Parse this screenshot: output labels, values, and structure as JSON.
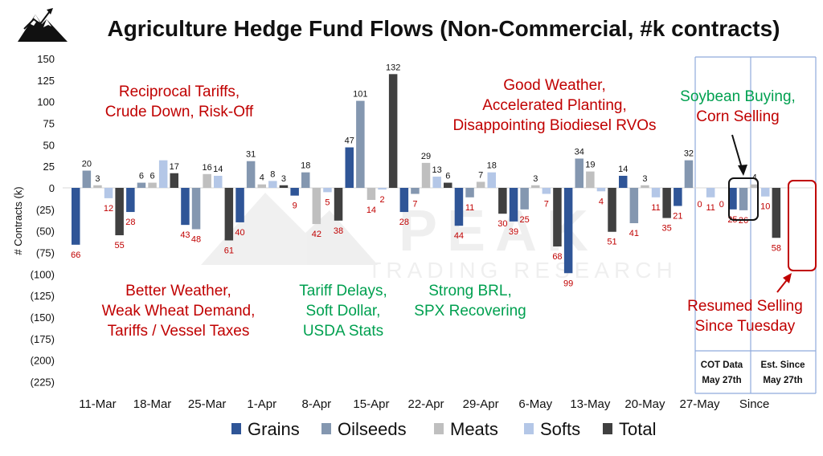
{
  "chart_data": {
    "type": "bar",
    "title": "Agriculture Hedge Fund Flows (Non-Commercial, #k contracts)",
    "ylabel": "# Contracts (k)",
    "ylim": [
      -225,
      150
    ],
    "ytick_labels": [
      "150",
      "125",
      "100",
      "75",
      "50",
      "25",
      "0",
      "(25)",
      "(50)",
      "(75)",
      "(100)",
      "(125)",
      "(150)",
      "(175)",
      "(200)",
      "(225)"
    ],
    "ytick_values": [
      150,
      125,
      100,
      75,
      50,
      25,
      0,
      -25,
      -50,
      -75,
      -100,
      -125,
      -150,
      -175,
      -200,
      -225
    ],
    "categories": [
      "11-Mar",
      "18-Mar",
      "25-Mar",
      "1-Apr",
      "8-Apr",
      "15-Apr",
      "22-Apr",
      "29-Apr",
      "6-May",
      "13-May",
      "20-May",
      "27-May",
      "Since"
    ],
    "grid": false,
    "legend_position": "bottom",
    "series": [
      {
        "name": "Grains",
        "color": "#2f5597",
        "values": [
          -66,
          -28,
          -43,
          -40,
          -9,
          47,
          -28,
          -44,
          -39,
          -99,
          14,
          -21,
          -25
        ]
      },
      {
        "name": "Oilseeds",
        "color": "#8497b0",
        "values": [
          20,
          6,
          -48,
          31,
          18,
          101,
          -7,
          -11,
          -25,
          34,
          -41,
          32,
          -26
        ]
      },
      {
        "name": "Meats",
        "color": "#bfbfbf",
        "values": [
          3,
          6,
          16,
          4,
          -42,
          -14,
          29,
          7,
          3,
          19,
          3,
          0,
          4
        ]
      },
      {
        "name": "Softs",
        "color": "#b4c7e7",
        "values": [
          -12,
          32,
          14,
          8,
          -5,
          -2,
          13,
          18,
          -7,
          -4,
          -11,
          -11,
          -10
        ]
      },
      {
        "name": "Total",
        "color": "#404040",
        "values": [
          -55,
          17,
          -61,
          3,
          -38,
          132,
          6,
          -30,
          -68,
          -51,
          -35,
          0,
          -58
        ]
      }
    ],
    "data_labels": [
      [
        "66",
        "20",
        "3",
        "12",
        "55"
      ],
      [
        "28",
        "6",
        "6",
        "",
        "17"
      ],
      [
        "43",
        "48",
        "16",
        "14",
        "61"
      ],
      [
        "40",
        "31",
        "4",
        "8",
        "3"
      ],
      [
        "9",
        "18",
        "42",
        "5",
        "38"
      ],
      [
        "47",
        "101",
        "14",
        "2",
        "132"
      ],
      [
        "28",
        "7",
        "29",
        "13",
        "6"
      ],
      [
        "44",
        "11",
        "7",
        "18",
        "30"
      ],
      [
        "39",
        "25",
        "3",
        "7",
        "68"
      ],
      [
        "99",
        "34",
        "19",
        "4",
        "51"
      ],
      [
        "14",
        "41",
        "3",
        "11",
        "35"
      ],
      [
        "21",
        "32",
        "0",
        "11",
        "0"
      ],
      [
        "25",
        "26",
        "4",
        "10",
        "58"
      ]
    ],
    "annotations": [
      {
        "lines": [
          "Reciprocal Tariffs,",
          "Crude Down, Risk-Off"
        ],
        "color": "#c00000"
      },
      {
        "lines": [
          "Better Weather,",
          "Weak Wheat Demand,",
          "Tariffs / Vessel Taxes"
        ],
        "color": "#c00000"
      },
      {
        "lines": [
          "Tariff Delays,",
          "Soft Dollar,",
          "USDA Stats"
        ],
        "color": "#00a050"
      },
      {
        "lines": [
          "Strong BRL,",
          "SPX Recovering"
        ],
        "color": "#00a050"
      },
      {
        "lines": [
          "Good Weather,",
          "Accelerated Planting,",
          "Disappointing Biodiesel RVOs"
        ],
        "color": "#c00000"
      },
      {
        "lines": [
          "Soybean Buying,"
        ],
        "color": "#00a050"
      },
      {
        "lines": [
          "Corn Selling"
        ],
        "color": "#c00000"
      },
      {
        "lines": [
          "Resumed Selling",
          "Since Tuesday"
        ],
        "color": "#c00000"
      }
    ],
    "period_boxes": [
      {
        "lines": [
          "COT Data",
          "May 27th"
        ]
      },
      {
        "lines": [
          "Est. Since",
          "May 27th"
        ]
      }
    ],
    "watermark": [
      "PEAK",
      "TRADING RESEARCH"
    ]
  }
}
